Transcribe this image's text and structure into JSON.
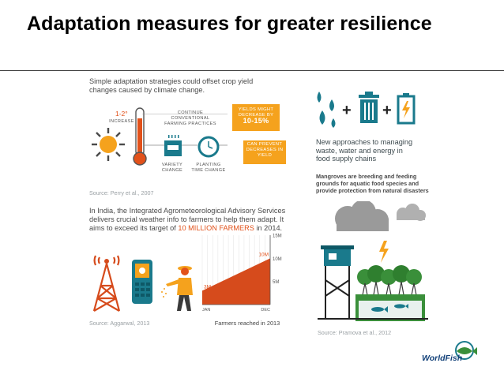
{
  "slide": {
    "title": "Adaptation measures for greater resilience"
  },
  "panel_crop": {
    "heading": "Simple adaptation strategies could offset crop yield changes caused by climate change.",
    "temp_label": "1-2°",
    "increase_label": "INCREASE",
    "continue_label": "CONTINUE CONVENTIONAL FARMING PRACTICES",
    "yields_line1": "YIELDS MIGHT DECREASE BY",
    "yields_line2": "10-15%",
    "prevent_label": "CAN PREVENT DECREASES IN YIELD",
    "variety_label": "VARIETY CHANGE",
    "planting_label": "PLANTING TIME CHANGE",
    "source": "Source: Perry et al., 2007"
  },
  "panel_waste": {
    "heading": "New approaches to managing waste, water and energy in food supply chains"
  },
  "panel_india": {
    "heading_pre": "In India, the Integrated Agrometeorological Advisory Services delivers crucial weather info to farmers to help them adapt. It aims to exceed its target of ",
    "heading_highlight": "10 MILLION FARMERS",
    "heading_post": " in 2014.",
    "source": "Source: Aggarwal, 2013",
    "caption": "Farmers reached in 2013"
  },
  "chart_data": {
    "type": "area",
    "x": [
      "JAN",
      "DEC"
    ],
    "values": [
      3,
      10
    ],
    "ytick_labels": [
      "5M",
      "10M",
      "15M"
    ],
    "annotations": [
      "3M",
      "10M"
    ],
    "xlabel": "Farmers reached in 2013",
    "ylim": [
      0,
      15
    ],
    "colors": {
      "fill": "#d64b1c",
      "label": "#e2511a"
    }
  },
  "panel_mangrove": {
    "heading": "Mangroves are breeding and feeding grounds for aquatic food species and provide protection from natural disasters",
    "source": "Source: Pramova et al., 2012"
  },
  "brand": {
    "name": "WorldFish"
  },
  "colors": {
    "teal": "#1a7a8c",
    "orange": "#f5a21d",
    "red_orange": "#d64b1c",
    "green": "#3a8f3a"
  }
}
